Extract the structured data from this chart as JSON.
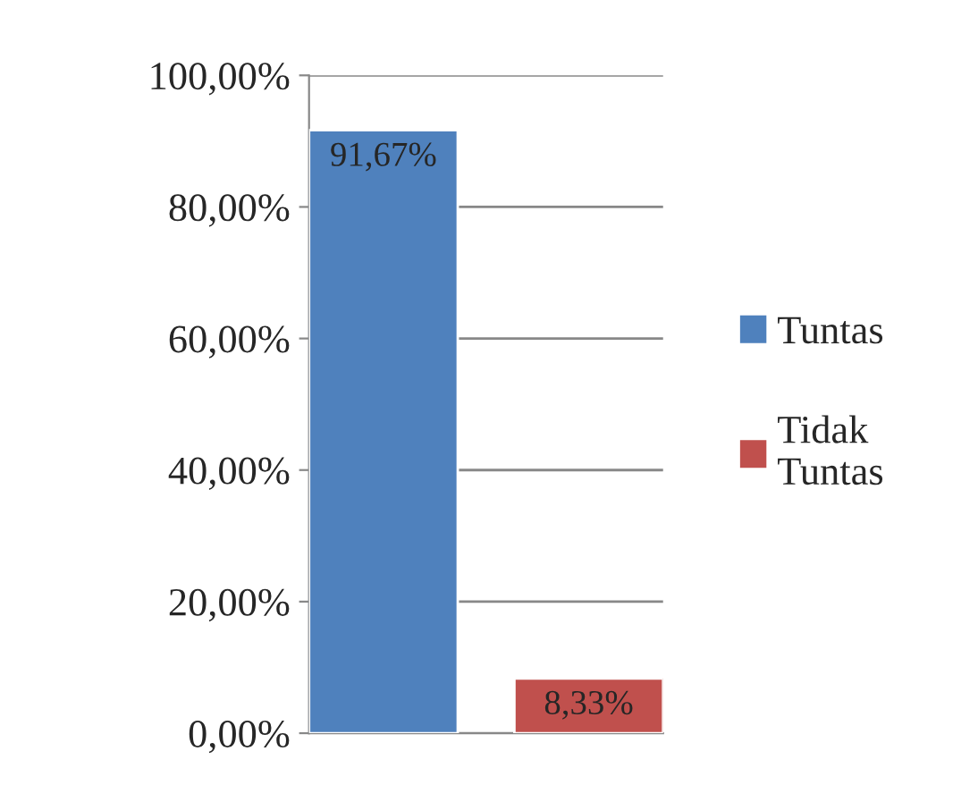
{
  "chart_data": {
    "type": "bar",
    "categories": [
      null
    ],
    "series": [
      {
        "name": "Tuntas",
        "color": "#4f81bd",
        "values": [
          91.67
        ],
        "value_labels": [
          "91,67%"
        ]
      },
      {
        "name": "Tidak Tuntas",
        "color": "#c0504d",
        "values": [
          8.33
        ],
        "value_labels": [
          "8,33%"
        ]
      }
    ],
    "ylim": [
      0,
      100
    ],
    "yticks": [
      {
        "value": 0,
        "label": "0,00%"
      },
      {
        "value": 20,
        "label": "20,00%"
      },
      {
        "value": 40,
        "label": "40,00%"
      },
      {
        "value": 60,
        "label": "60,00%"
      },
      {
        "value": 80,
        "label": "80,00%"
      },
      {
        "value": 100,
        "label": "100,00%"
      }
    ],
    "grid": "y",
    "legend": "right"
  }
}
